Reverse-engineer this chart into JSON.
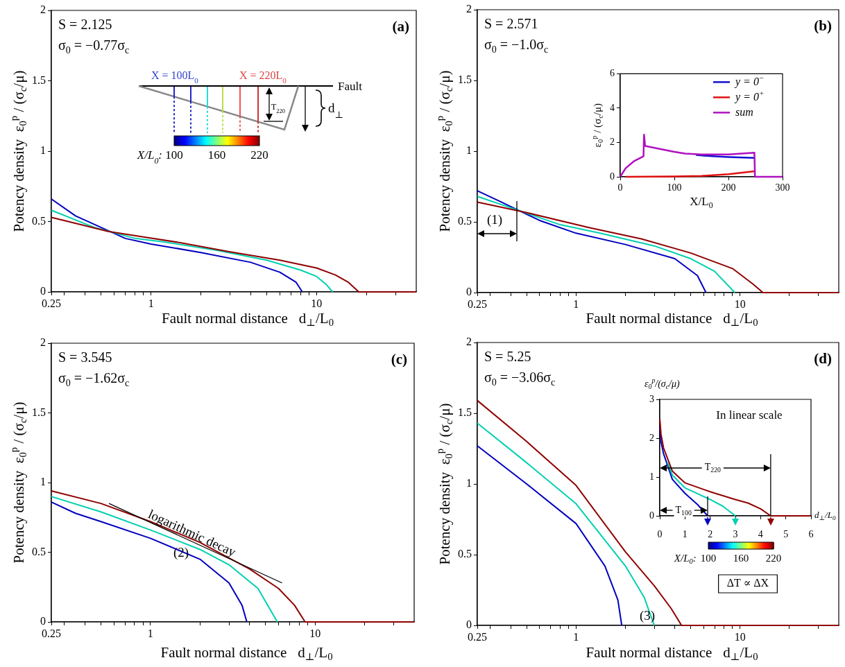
{
  "chart_data": [
    {
      "type": "line",
      "xlabel": "Fault normal distance   d$_{⊥}$/L$_{0}$",
      "ylabel": "Potency density  ε$_{0}$$^{p}$ / (σ$_{c}$/μ)",
      "log": "x",
      "xlim": [
        0.25,
        40
      ],
      "xticks": [
        0.25,
        {
          "value": 0.3,
          "label": null
        },
        {
          "value": 0.4,
          "label": null
        },
        {
          "value": 0.5,
          "label": null
        },
        {
          "value": 0.6,
          "label": null
        },
        {
          "value": 0.7,
          "label": null
        },
        {
          "value": 0.8,
          "label": null
        },
        {
          "value": 0.9,
          "label": null
        },
        1,
        {
          "value": 2,
          "label": null
        },
        {
          "value": 3,
          "label": null
        },
        {
          "value": 4,
          "label": null
        },
        {
          "value": 5,
          "label": null
        },
        {
          "value": 6,
          "label": null
        },
        {
          "value": 7,
          "label": null
        },
        {
          "value": 8,
          "label": null
        },
        {
          "value": 9,
          "label": null
        },
        10,
        {
          "value": 20,
          "label": null
        },
        {
          "value": 30,
          "label": null
        }
      ],
      "ylim": [
        0,
        2
      ],
      "yticks": [
        0,
        0.5,
        1,
        1.5,
        2
      ],
      "annotations": [
        "(a)",
        "S = 2.125",
        "σ$_{0}$ = −0.77σ$_{c}$",
        "X = 100L$_{0}$",
        "X = 220L$_{0}$",
        "Fault",
        "T$_{220}$",
        "d$_{⊥}$",
        "X/L$_{0}$:",
        "100",
        "160",
        "220"
      ],
      "series": [
        {
          "color": "#0000c0",
          "x": [
            0.25,
            0.35,
            0.7,
            1,
            2,
            4,
            6,
            7.5,
            8.2
          ],
          "values": [
            0.66,
            0.54,
            0.38,
            0.34,
            0.28,
            0.21,
            0.14,
            0.07,
            0
          ]
        },
        {
          "color": "#00d0b0",
          "x": [
            0.25,
            0.45,
            0.8,
            1.2,
            2.5,
            5,
            8,
            10,
            11.5,
            12.5
          ],
          "values": [
            0.58,
            0.46,
            0.38,
            0.355,
            0.295,
            0.225,
            0.155,
            0.11,
            0.05,
            0
          ]
        },
        {
          "color": "#900000",
          "x": [
            0.25,
            0.4,
            0.55,
            0.9,
            1.5,
            3,
            6,
            10,
            13,
            15.5,
            18,
            40
          ],
          "values": [
            0.53,
            0.47,
            0.43,
            0.39,
            0.35,
            0.285,
            0.225,
            0.17,
            0.12,
            0.07,
            0,
            0
          ]
        }
      ]
    },
    {
      "type": "line",
      "xlabel": "Fault normal distance   d$_{⊥}$/L$_{0}$",
      "ylabel": "Potency density  ε$_{0}$$^{p}$ / (σ$_{c}$/μ)",
      "log": "x",
      "xlim": [
        0.25,
        40
      ],
      "xticks": [
        0.25,
        {
          "value": 0.3,
          "label": null
        },
        {
          "value": 0.4,
          "label": null
        },
        {
          "value": 0.5,
          "label": null
        },
        {
          "value": 0.6,
          "label": null
        },
        {
          "value": 0.7,
          "label": null
        },
        {
          "value": 0.8,
          "label": null
        },
        {
          "value": 0.9,
          "label": null
        },
        1,
        {
          "value": 2,
          "label": null
        },
        {
          "value": 3,
          "label": null
        },
        {
          "value": 4,
          "label": null
        },
        {
          "value": 5,
          "label": null
        },
        {
          "value": 6,
          "label": null
        },
        {
          "value": 7,
          "label": null
        },
        {
          "value": 8,
          "label": null
        },
        {
          "value": 9,
          "label": null
        },
        10,
        {
          "value": 20,
          "label": null
        },
        {
          "value": 30,
          "label": null
        }
      ],
      "ylim": [
        0,
        2
      ],
      "yticks": [
        0,
        0.5,
        1,
        1.5,
        2
      ],
      "annotations": [
        "(b)",
        "S = 2.571",
        "σ$_{0}$ = −1.0σ$_{c}$",
        "(1)"
      ],
      "series": [
        {
          "color": "#0000c0",
          "x": [
            0.25,
            0.35,
            0.6,
            1,
            2,
            4,
            5.5,
            6.2
          ],
          "values": [
            0.72,
            0.64,
            0.51,
            0.42,
            0.34,
            0.24,
            0.12,
            0
          ]
        },
        {
          "color": "#00d0b0",
          "x": [
            0.25,
            0.4,
            0.8,
            1.4,
            3,
            5,
            7,
            9.3
          ],
          "values": [
            0.68,
            0.6,
            0.48,
            0.42,
            0.33,
            0.24,
            0.15,
            0
          ]
        },
        {
          "color": "#900000",
          "x": [
            0.25,
            0.48,
            1.2,
            2.5,
            5,
            9,
            12,
            13.8,
            40
          ],
          "values": [
            0.64,
            0.57,
            0.46,
            0.38,
            0.28,
            0.17,
            0.06,
            0,
            0
          ]
        }
      ]
    },
    {
      "type": "line",
      "xlabel": "X/L$_{0}$",
      "ylabel": "ε$_{0}$$^{p}$ / (σ$_{c}$/μ)",
      "xlim": [
        0,
        300
      ],
      "xticks": [
        0,
        100,
        200,
        300
      ],
      "ylim": [
        0,
        6
      ],
      "yticks": [
        0,
        2,
        4,
        6
      ],
      "legend": "top right",
      "series": [
        {
          "name": "y = 0$^{−}$",
          "color": "#1010d0",
          "x": [
            140,
            170,
            200,
            248
          ],
          "values": [
            1.27,
            1.2,
            1.15,
            1.1
          ]
        },
        {
          "name": "y = 0$^{+}$",
          "color": "#e01010",
          "x": [
            10,
            100,
            150,
            200,
            248
          ],
          "values": [
            0,
            0.02,
            0.05,
            0.15,
            0.32
          ]
        },
        {
          "name": "sum",
          "color": "#b010c0",
          "x": [
            0,
            10,
            25,
            43,
            44,
            46,
            100,
            120,
            150,
            200,
            248,
            249,
            300
          ],
          "values": [
            0,
            0.5,
            0.9,
            1.2,
            2.45,
            1.8,
            1.45,
            1.35,
            1.3,
            1.3,
            1.4,
            0,
            0
          ]
        }
      ]
    },
    {
      "type": "line",
      "xlabel": "Fault normal distance   d$_{⊥}$/L$_{0}$",
      "ylabel": "Potency density  ε$_{0}$$^{p}$ / (σ$_{c}$/μ)",
      "log": "x",
      "xlim": [
        0.25,
        40
      ],
      "xticks": [
        0.25,
        {
          "value": 0.3,
          "label": null
        },
        {
          "value": 0.4,
          "label": null
        },
        {
          "value": 0.5,
          "label": null
        },
        {
          "value": 0.6,
          "label": null
        },
        {
          "value": 0.7,
          "label": null
        },
        {
          "value": 0.8,
          "label": null
        },
        {
          "value": 0.9,
          "label": null
        },
        1,
        {
          "value": 2,
          "label": null
        },
        {
          "value": 3,
          "label": null
        },
        {
          "value": 4,
          "label": null
        },
        {
          "value": 5,
          "label": null
        },
        {
          "value": 6,
          "label": null
        },
        {
          "value": 7,
          "label": null
        },
        {
          "value": 8,
          "label": null
        },
        {
          "value": 9,
          "label": null
        },
        10,
        {
          "value": 20,
          "label": null
        },
        {
          "value": 30,
          "label": null
        }
      ],
      "ylim": [
        0,
        2
      ],
      "yticks": [
        0,
        0.5,
        1,
        1.5,
        2
      ],
      "annotations": [
        "(c)",
        "S = 3.545",
        "σ$_{0}$ = −1.62σ$_{c}$",
        "logarithmic decay",
        "(2)"
      ],
      "series": [
        {
          "color": "#0000c0",
          "x": [
            0.25,
            0.35,
            0.5,
            1,
            2,
            3,
            3.6,
            3.85
          ],
          "values": [
            0.86,
            0.78,
            0.72,
            0.6,
            0.45,
            0.28,
            0.12,
            0
          ]
        },
        {
          "color": "#00d0b0",
          "x": [
            0.25,
            0.5,
            1,
            2,
            3,
            4.5,
            5.9
          ],
          "values": [
            0.9,
            0.79,
            0.66,
            0.52,
            0.41,
            0.24,
            0
          ]
        },
        {
          "color": "#900000",
          "x": [
            0.25,
            0.5,
            1,
            2,
            4,
            6,
            7.5,
            8.7,
            40
          ],
          "values": [
            0.94,
            0.85,
            0.72,
            0.57,
            0.38,
            0.24,
            0.12,
            0,
            0
          ]
        },
        {
          "type": "line",
          "color": "#000000",
          "x": [
            0.56,
            6.3
          ],
          "values": [
            0.85,
            0.28
          ]
        }
      ]
    },
    {
      "type": "line",
      "xlabel": "Fault normal distance   d$_{⊥}$/L$_{0}$",
      "ylabel": "Potency density  ε$_{0}$$^{p}$ / (σ$_{c}$/μ)",
      "log": "x",
      "xlim": [
        0.25,
        40
      ],
      "xticks": [
        0.25,
        {
          "value": 0.3,
          "label": null
        },
        {
          "value": 0.4,
          "label": null
        },
        {
          "value": 0.5,
          "label": null
        },
        {
          "value": 0.6,
          "label": null
        },
        {
          "value": 0.7,
          "label": null
        },
        {
          "value": 0.8,
          "label": null
        },
        {
          "value": 0.9,
          "label": null
        },
        1,
        {
          "value": 2,
          "label": null
        },
        {
          "value": 3,
          "label": null
        },
        {
          "value": 4,
          "label": null
        },
        {
          "value": 5,
          "label": null
        },
        {
          "value": 6,
          "label": null
        },
        {
          "value": 7,
          "label": null
        },
        {
          "value": 8,
          "label": null
        },
        {
          "value": 9,
          "label": null
        },
        10,
        {
          "value": 20,
          "label": null
        },
        {
          "value": 30,
          "label": null
        }
      ],
      "ylim": [
        0,
        2
      ],
      "yticks": [
        0,
        0.5,
        1,
        1.5,
        2
      ],
      "annotations": [
        "(d)",
        "S = 5.25",
        "σ$_{0}$ = −3.06σ$_{c}$",
        "(3)"
      ],
      "series": [
        {
          "color": "#0000c0",
          "x": [
            0.25,
            0.5,
            1,
            1.5,
            1.8,
            1.9
          ],
          "values": [
            1.27,
            1.0,
            0.72,
            0.42,
            0.18,
            0
          ]
        },
        {
          "color": "#00d0b0",
          "x": [
            0.25,
            0.5,
            1,
            2,
            2.6,
            3
          ],
          "values": [
            1.43,
            1.15,
            0.86,
            0.42,
            0.2,
            0
          ]
        },
        {
          "color": "#900000",
          "x": [
            0.25,
            0.5,
            1,
            2,
            3,
            3.8,
            4.4,
            40
          ],
          "values": [
            1.59,
            1.3,
            0.99,
            0.52,
            0.28,
            0.12,
            0,
            0
          ]
        }
      ]
    },
    {
      "type": "line",
      "xlabel": "d$_{⊥}$/L$_{0}$",
      "ylabel": "ε$_{0}$$^{p}$/(σ$_{c}$/μ)",
      "xlim": [
        0,
        6
      ],
      "xticks": [
        0,
        1,
        2,
        3,
        4,
        5,
        6
      ],
      "ylim": [
        0,
        3
      ],
      "yticks": [
        0,
        1,
        2,
        3
      ],
      "clim": [
        100,
        220
      ],
      "cticks": [
        100,
        160,
        220
      ],
      "clabel": "X/L$_{0}$:",
      "annotations": [
        "In linear scale",
        "ΔT ∝ ΔX",
        {
          "text": "T$_{220}$",
          "x": 2.1,
          "y": 1.24
        },
        {
          "text": "T$_{100}$",
          "x": 0.94,
          "y": 0.14
        }
      ],
      "series": [
        {
          "color": "#0000c0",
          "x": [
            0,
            0.05,
            0.15,
            0.5,
            1,
            1.5,
            1.9
          ],
          "values": [
            2.3,
            1.9,
            1.6,
            0.94,
            0.58,
            0.29,
            0
          ]
        },
        {
          "color": "#00d0b0",
          "x": [
            0.3,
            0.5,
            1,
            2,
            2.5,
            3
          ],
          "values": [
            1.38,
            1.05,
            0.72,
            0.42,
            0.25,
            0
          ]
        },
        {
          "color": "#900000",
          "x": [
            0,
            0.05,
            0.15,
            0.5,
            1,
            2,
            3,
            3.5,
            4,
            4.4,
            6
          ],
          "values": [
            2.5,
            2.1,
            1.75,
            1.15,
            0.85,
            0.62,
            0.42,
            0.33,
            0.18,
            0,
            0
          ]
        }
      ]
    }
  ]
}
